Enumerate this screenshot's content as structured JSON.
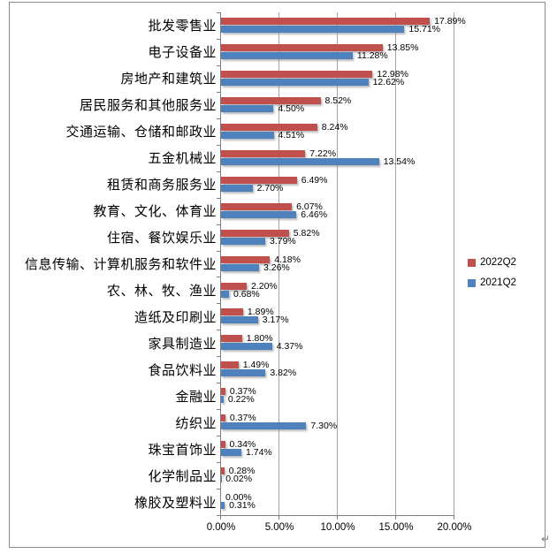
{
  "chart_data": {
    "type": "bar",
    "orientation": "horizontal",
    "title": "",
    "xlabel": "",
    "ylabel": "",
    "grid": true,
    "legend_position": "right",
    "categories": [
      "批发零售业",
      "电子设备业",
      "房地产和建筑业",
      "居民服务和其他服务业",
      "交通运输、仓储和邮政业",
      "五金机械业",
      "租赁和商务服务业",
      "教育、文化、体育业",
      "住宿、餐饮娱乐业",
      "信息传输、计算机服务和软件业",
      "农、林、牧、渔业",
      "造纸及印刷业",
      "家具制造业",
      "食品饮料业",
      "金融业",
      "纺织业",
      "珠宝首饰业",
      "化学制品业",
      "橡胶及塑料业"
    ],
    "series": [
      {
        "name": "2022Q2",
        "color": "#c0504d",
        "values": [
          17.89,
          13.85,
          12.98,
          8.52,
          8.24,
          7.22,
          6.49,
          6.07,
          5.82,
          4.18,
          2.2,
          1.89,
          1.8,
          1.49,
          0.37,
          0.37,
          0.34,
          0.28,
          0.0
        ],
        "labels": [
          "17.89%",
          "13.85%",
          "12.98%",
          "8.52%",
          "8.24%",
          "7.22%",
          "6.49%",
          "6.07%",
          "5.82%",
          "4.18%",
          "2.20%",
          "1.89%",
          "1.80%",
          "1.49%",
          "0.37%",
          "0.37%",
          "0.34%",
          "0.28%",
          "0.00%"
        ]
      },
      {
        "name": "2021Q2",
        "color": "#4f81bd",
        "values": [
          15.71,
          11.28,
          12.62,
          4.5,
          4.51,
          13.54,
          2.7,
          6.46,
          3.79,
          3.26,
          0.68,
          3.17,
          4.37,
          3.82,
          0.22,
          7.3,
          1.74,
          0.02,
          0.31
        ],
        "labels": [
          "15.71%",
          "11.28%",
          "12.62%",
          "4.50%",
          "4.51%",
          "13.54%",
          "2.70%",
          "6.46%",
          "3.79%",
          "3.26%",
          "0.68%",
          "3.17%",
          "4.37%",
          "3.82%",
          "0.22%",
          "7.30%",
          "1.74%",
          "0.02%",
          "0.31%"
        ]
      }
    ],
    "x_axis": {
      "min": 0,
      "max": 20,
      "tick_labels": [
        "0.00%",
        "5.00%",
        "10.00%",
        "15.00%",
        "20.00%"
      ]
    },
    "legend": [
      {
        "label": "2022Q2",
        "color": "#c0504d"
      },
      {
        "label": "2021Q2",
        "color": "#4f81bd"
      }
    ]
  },
  "colors": {
    "gridline": "#a6a6a6",
    "axis": "#7f7f7f",
    "frame_border": "#8c8c8c"
  },
  "marks": {
    "return_mark": "↵"
  }
}
